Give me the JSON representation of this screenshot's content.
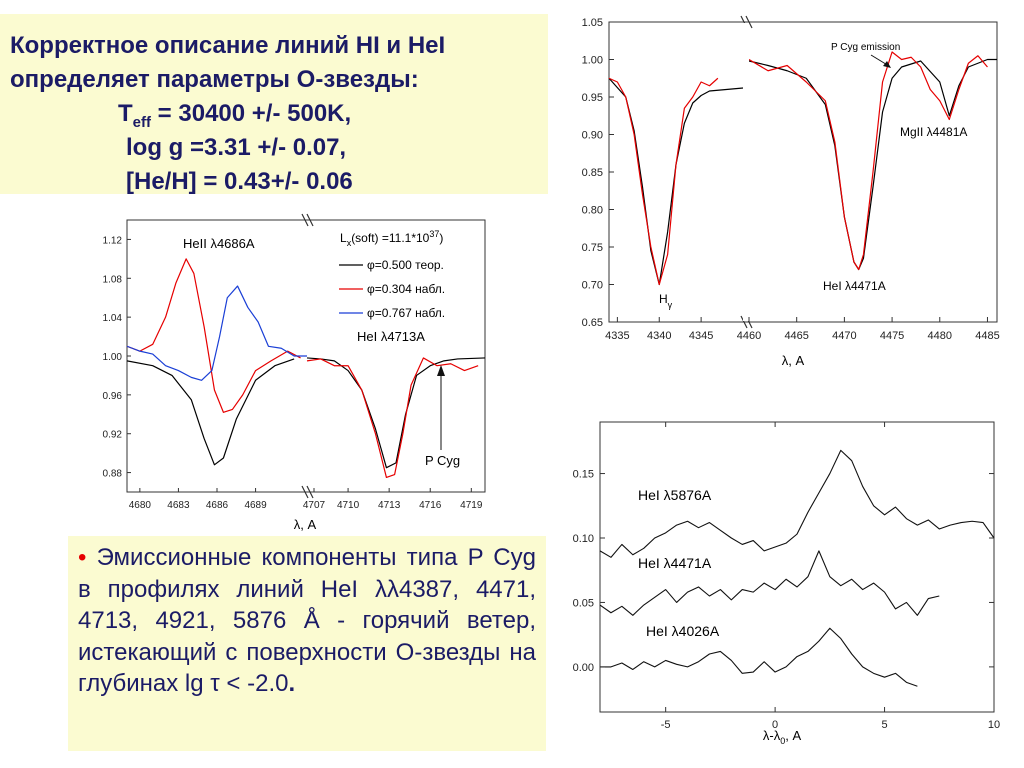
{
  "text_top": {
    "line1": "Корректное описание линий HI и HeI",
    "line2": "определяет параметры О-звезды:",
    "teff_prefix": "T",
    "teff_sub": "eff",
    "teff_rest": " = 30400 +/- 500K,",
    "logg": "log g =3.31 +/- 0.07,",
    "heh": "[He/H] = 0.43+/- 0.06"
  },
  "text_bottom": {
    "bullet": "•",
    "body": "Эмиссионные компоненты типа P Cyg в профилях линий HeI λλ4387, 4471, 4713, 4921, 5876 Å - горячий ветер, истекающий с поверхности О-звезды на глубинах lg τ < -2.0",
    "end": "."
  },
  "chart_data": [
    {
      "type": "line",
      "xlabel": "λ, A",
      "ylabel": "",
      "ylim": [
        0.65,
        1.05
      ],
      "panels": [
        {
          "xlim": [
            4334,
            4350
          ]
        },
        {
          "xlim": [
            4460,
            4486
          ]
        }
      ],
      "x_ticks": [
        "4335",
        "4340",
        "4345",
        "4460",
        "4465",
        "4470",
        "4475",
        "4480",
        "4485"
      ],
      "y_ticks": [
        "0.65",
        "0.70",
        "0.75",
        "0.80",
        "0.85",
        "0.90",
        "0.95",
        "1.00",
        "1.05"
      ],
      "annotations": {
        "h_gamma": "H",
        "h_gamma_sub": "γ",
        "hei_4471": "HeI λ4471A",
        "mgii_4481": "MgII λ4481A",
        "p_cyg_emission": "P Cyg emission"
      },
      "series": [
        {
          "color": "#000000",
          "x": [
            4334,
            4336,
            4337,
            4338,
            4339,
            4340,
            4341,
            4342,
            4343,
            4344,
            4345,
            4346,
            4348,
            4350,
            4460,
            4462,
            4464,
            4466,
            4468,
            4469,
            4470,
            4471,
            4471.5,
            4472,
            4473,
            4474,
            4475,
            4476,
            4478,
            4480,
            4481,
            4482,
            4483,
            4485,
            4486
          ],
          "y": [
            0.975,
            0.95,
            0.905,
            0.83,
            0.745,
            0.7,
            0.77,
            0.86,
            0.915,
            0.942,
            0.952,
            0.958,
            0.96,
            0.962,
            0.998,
            0.992,
            0.985,
            0.975,
            0.94,
            0.885,
            0.79,
            0.73,
            0.72,
            0.735,
            0.83,
            0.93,
            0.975,
            0.99,
            0.998,
            0.97,
            0.925,
            0.965,
            0.99,
            1.0,
            1.0
          ]
        },
        {
          "color": "#e60000",
          "x": [
            4334,
            4335,
            4336,
            4337,
            4338,
            4339,
            4340,
            4341,
            4342,
            4343,
            4344,
            4345,
            4346,
            4347,
            4460,
            4462,
            4464,
            4466,
            4468,
            4469,
            4470,
            4471,
            4471.5,
            4472,
            4473,
            4474,
            4475,
            4476,
            4477,
            4478,
            4479,
            4480,
            4481,
            4482,
            4483,
            4484,
            4485
          ],
          "y": [
            0.975,
            0.97,
            0.95,
            0.9,
            0.82,
            0.75,
            0.7,
            0.74,
            0.86,
            0.935,
            0.95,
            0.97,
            0.965,
            0.975,
            1.0,
            0.985,
            0.992,
            0.97,
            0.945,
            0.89,
            0.79,
            0.73,
            0.72,
            0.74,
            0.85,
            0.97,
            1.01,
            1.0,
            1.003,
            0.99,
            0.96,
            0.945,
            0.92,
            0.96,
            0.995,
            1.005,
            0.99
          ]
        }
      ]
    },
    {
      "type": "line",
      "xlabel": "λ, A",
      "ylabel": "",
      "ylim": [
        0.86,
        1.14
      ],
      "panels": [
        {
          "xlim": [
            4679,
            4707
          ]
        },
        {
          "xlim": [
            4707,
            4720
          ]
        }
      ],
      "x_ticks": [
        "4680",
        "4683",
        "4686",
        "4689",
        "4707",
        "4710",
        "4713",
        "4716",
        "4719"
      ],
      "y_ticks": [
        "0.88",
        "0.92",
        "0.96",
        "1.00",
        "1.04",
        "1.08",
        "1.12"
      ],
      "annotations": {
        "heii_4686": "HeII λ4686A",
        "hei_4713": "HeI λ4713A",
        "p_cyg": "P Cyg",
        "lx_prefix": "L",
        "lx_sub": "x",
        "lx_mid": "(soft) =11.1*10",
        "lx_sup": "37",
        "lx_end": ")"
      },
      "series": [
        {
          "name": "φ=0.500 теор.",
          "color": "#000000",
          "x": [
            4679,
            4681,
            4682.5,
            4684,
            4685,
            4685.8,
            4686.5,
            4687.5,
            4689,
            4690.5,
            4692,
            4707,
            4708,
            4709,
            4710,
            4711,
            4712,
            4712.8,
            4713.5,
            4714.2,
            4715,
            4716,
            4717,
            4718,
            4720
          ],
          "y": [
            0.995,
            0.99,
            0.98,
            0.955,
            0.915,
            0.888,
            0.895,
            0.935,
            0.975,
            0.99,
            0.997,
            0.998,
            0.997,
            0.995,
            0.985,
            0.965,
            0.925,
            0.885,
            0.89,
            0.94,
            0.98,
            0.99,
            0.995,
            0.997,
            0.998
          ]
        },
        {
          "name": "φ=0.304 набл.",
          "color": "#e60000",
          "x": [
            4679,
            4680,
            4681,
            4682,
            4682.8,
            4683.6,
            4684.2,
            4685,
            4685.8,
            4686.5,
            4687.2,
            4688,
            4689,
            4690.2,
            4691.5,
            4692.5,
            4707,
            4708,
            4709,
            4710,
            4711,
            4712,
            4712.8,
            4713.4,
            4714,
            4714.6,
            4715.5,
            4716.5,
            4717.5,
            4718.5,
            4719.5
          ],
          "y": [
            1.01,
            1.005,
            1.012,
            1.04,
            1.075,
            1.1,
            1.085,
            1.03,
            0.965,
            0.942,
            0.945,
            0.96,
            0.985,
            0.995,
            1.005,
            0.998,
            0.995,
            0.997,
            0.99,
            0.99,
            0.965,
            0.92,
            0.875,
            0.878,
            0.92,
            0.97,
            0.998,
            0.99,
            0.992,
            0.985,
            0.99
          ]
        },
        {
          "name": "φ=0.767 набл.",
          "color": "#1a3fd6",
          "x": [
            4679,
            4680,
            4681,
            4682,
            4683,
            4684,
            4684.8,
            4685.6,
            4686.2,
            4686.8,
            4687.6,
            4688.4,
            4689.2,
            4690,
            4691,
            4692,
            4693
          ],
          "y": [
            1.01,
            1.005,
            1.002,
            0.99,
            0.985,
            0.978,
            0.975,
            0.985,
            1.02,
            1.06,
            1.072,
            1.05,
            1.035,
            1.01,
            1.008,
            1.0,
            1.0
          ]
        }
      ]
    },
    {
      "type": "line",
      "xlabel": "λ-λ0, A",
      "ylabel": "",
      "ylim": [
        -0.035,
        0.19
      ],
      "xlim": [
        -8,
        10
      ],
      "x_ticks": [
        "-5",
        "0",
        "5",
        "10"
      ],
      "y_ticks": [
        "0.00",
        "0.05",
        "0.10",
        "0.15"
      ],
      "annotations": {
        "xlabel_main": "λ-λ",
        "xlabel_sub": "0",
        "xlabel_unit": ", A"
      },
      "series": [
        {
          "name": "HeI λ5876A",
          "color": "#111111",
          "x": [
            -8,
            -7.5,
            -7,
            -6.5,
            -6,
            -5.5,
            -5,
            -4.5,
            -4,
            -3.5,
            -3,
            -2.5,
            -2,
            -1.5,
            -1,
            -0.5,
            0,
            0.5,
            1,
            1.5,
            2,
            2.5,
            3,
            3.5,
            4,
            4.5,
            5,
            5.5,
            6,
            6.5,
            7,
            7.5,
            8,
            8.5,
            9,
            9.5,
            10
          ],
          "y": [
            0.09,
            0.085,
            0.095,
            0.087,
            0.092,
            0.1,
            0.104,
            0.11,
            0.113,
            0.108,
            0.112,
            0.106,
            0.1,
            0.095,
            0.098,
            0.09,
            0.093,
            0.096,
            0.103,
            0.12,
            0.135,
            0.15,
            0.168,
            0.16,
            0.14,
            0.125,
            0.118,
            0.124,
            0.115,
            0.11,
            0.114,
            0.107,
            0.11,
            0.112,
            0.113,
            0.112,
            0.1
          ]
        },
        {
          "name": "HeI λ4471A",
          "color": "#111111",
          "x": [
            -8,
            -7.5,
            -7,
            -6.5,
            -6,
            -5.5,
            -5,
            -4.5,
            -4,
            -3.5,
            -3,
            -2.5,
            -2,
            -1.5,
            -1,
            -0.5,
            0,
            0.5,
            1,
            1.5,
            2,
            2.5,
            3,
            3.5,
            4,
            4.5,
            5,
            5.5,
            6,
            6.5,
            7,
            7.5
          ],
          "y": [
            0.048,
            0.042,
            0.047,
            0.04,
            0.048,
            0.054,
            0.06,
            0.05,
            0.058,
            0.062,
            0.055,
            0.06,
            0.052,
            0.06,
            0.058,
            0.065,
            0.06,
            0.068,
            0.062,
            0.07,
            0.09,
            0.07,
            0.063,
            0.068,
            0.06,
            0.065,
            0.058,
            0.045,
            0.05,
            0.04,
            0.053,
            0.055
          ]
        },
        {
          "name": "HeI λ4026A",
          "color": "#111111",
          "x": [
            -8,
            -7.5,
            -7,
            -6.5,
            -6,
            -5.5,
            -5,
            -4.5,
            -4,
            -3.5,
            -3,
            -2.5,
            -2,
            -1.5,
            -1,
            -0.5,
            0,
            0.5,
            1,
            1.5,
            2,
            2.5,
            3,
            3.5,
            4,
            4.5,
            5,
            5.5,
            6,
            6.5
          ],
          "y": [
            0.0,
            0.0,
            0.003,
            -0.002,
            0.004,
            0.0,
            0.005,
            0.002,
            0.0,
            0.004,
            0.01,
            0.012,
            0.005,
            -0.005,
            -0.004,
            0.004,
            -0.004,
            0.0,
            0.008,
            0.012,
            0.02,
            0.03,
            0.022,
            0.01,
            0.0,
            -0.005,
            -0.008,
            -0.005,
            -0.012,
            -0.015
          ]
        }
      ]
    }
  ]
}
